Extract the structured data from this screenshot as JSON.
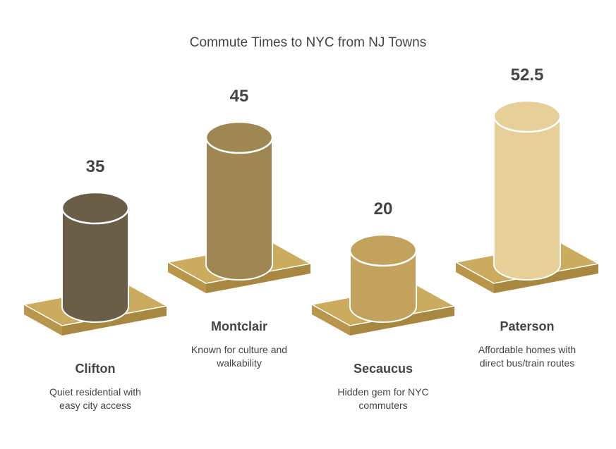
{
  "chart_data": {
    "type": "bar",
    "title": "Commute Times to NYC from NJ Towns",
    "categories": [
      "Clifton",
      "Montclair",
      "Secaucus",
      "Paterson"
    ],
    "values": [
      35,
      45,
      20,
      52.5
    ],
    "descriptions": [
      "Quiet residential with easy city access",
      "Known for culture and walkability",
      "Hidden gem for NYC commuters",
      "Affordable homes with direct bus/train routes"
    ],
    "colors": [
      "#6b5e48",
      "#9e8752",
      "#c2a25c",
      "#e6cf98"
    ]
  }
}
